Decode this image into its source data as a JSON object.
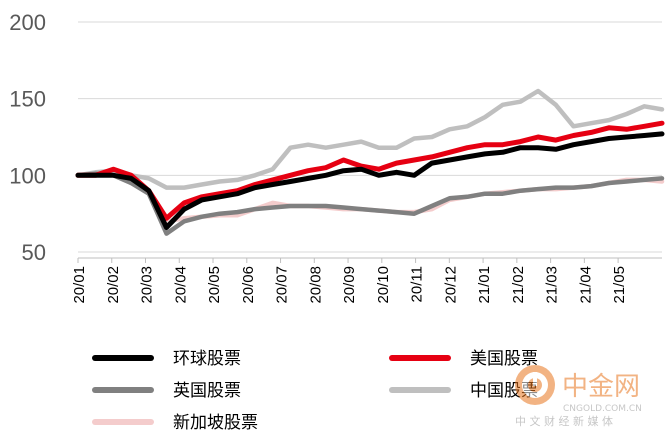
{
  "chart_data": {
    "type": "line",
    "title": "",
    "xlabel": "",
    "ylabel": "",
    "ylim": [
      50,
      200
    ],
    "yticks": [
      50,
      100,
      150,
      200
    ],
    "grid": "horizontal",
    "legend_position": "bottom",
    "x_tick_labels": [
      "20/01",
      "20/02",
      "20/03",
      "20/04",
      "20/05",
      "20/06",
      "20/07",
      "20/08",
      "20/09",
      "20/10",
      "20/11",
      "20/12",
      "21/01",
      "21/02",
      "21/03",
      "21/04",
      "21/05"
    ],
    "x": [
      "20/01",
      "20/02",
      "20/02",
      "20/03",
      "20/03",
      "20/04",
      "20/04",
      "20/05",
      "20/05",
      "20/06",
      "20/06",
      "20/07",
      "20/07",
      "20/08",
      "20/08",
      "20/09",
      "20/09",
      "20/10",
      "20/10",
      "20/11",
      "20/11",
      "20/12",
      "20/12",
      "21/01",
      "21/01",
      "21/02",
      "21/02",
      "21/03",
      "21/03",
      "21/04",
      "21/04",
      "21/05",
      "21/05",
      "21/06"
    ],
    "series": [
      {
        "name": "环球股票",
        "color": "#000000",
        "values": [
          100,
          100,
          100,
          98,
          90,
          66,
          78,
          84,
          86,
          88,
          92,
          94,
          96,
          98,
          100,
          103,
          104,
          100,
          102,
          100,
          108,
          110,
          112,
          114,
          115,
          118,
          118,
          117,
          120,
          122,
          124,
          125,
          126,
          127
        ]
      },
      {
        "name": "美国股票",
        "color": "#e60012",
        "values": [
          100,
          100,
          104,
          100,
          90,
          72,
          82,
          86,
          88,
          90,
          94,
          97,
          100,
          103,
          105,
          110,
          106,
          104,
          108,
          110,
          112,
          115,
          118,
          120,
          120,
          122,
          125,
          123,
          126,
          128,
          131,
          130,
          132,
          134
        ]
      },
      {
        "name": "英国股票",
        "color": "#808080",
        "values": [
          100,
          101,
          100,
          95,
          88,
          62,
          70,
          73,
          75,
          76,
          78,
          79,
          80,
          80,
          80,
          79,
          78,
          77,
          76,
          75,
          80,
          85,
          86,
          88,
          88,
          90,
          91,
          92,
          92,
          93,
          95,
          96,
          97,
          98
        ]
      },
      {
        "name": "中国股票",
        "color": "#bfbfbf",
        "values": [
          100,
          102,
          103,
          100,
          98,
          92,
          92,
          94,
          96,
          97,
          100,
          104,
          118,
          120,
          118,
          120,
          122,
          118,
          118,
          124,
          125,
          130,
          132,
          138,
          146,
          148,
          155,
          146,
          132,
          134,
          136,
          140,
          145,
          143
        ]
      },
      {
        "name": "新加坡股票",
        "color": "#f4cccc",
        "values": [
          100,
          100,
          100,
          96,
          90,
          70,
          72,
          73,
          74,
          74,
          78,
          82,
          80,
          80,
          79,
          78,
          78,
          77,
          76,
          76,
          78,
          84,
          86,
          88,
          89,
          90,
          91,
          91,
          92,
          93,
          95,
          97,
          97,
          96
        ]
      }
    ]
  },
  "watermark": {
    "brand": "中金网",
    "domain": "CNGOLD.COM.CN",
    "tagline": "中 文 财 经 新 媒 体",
    "logo_color": "#e8761e"
  }
}
